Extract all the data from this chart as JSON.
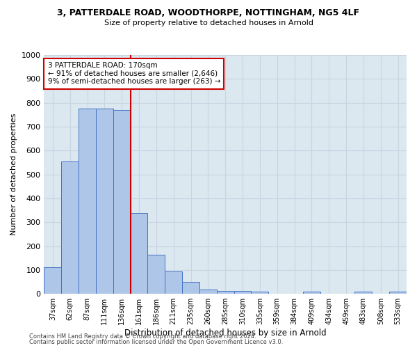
{
  "title1": "3, PATTERDALE ROAD, WOODTHORPE, NOTTINGHAM, NG5 4LF",
  "title2": "Size of property relative to detached houses in Arnold",
  "xlabel": "Distribution of detached houses by size in Arnold",
  "ylabel": "Number of detached properties",
  "footer1": "Contains HM Land Registry data © Crown copyright and database right 2024.",
  "footer2": "Contains public sector information licensed under the Open Government Licence v3.0.",
  "annotation_title": "3 PATTERDALE ROAD: 170sqm",
  "annotation_line1": "← 91% of detached houses are smaller (2,646)",
  "annotation_line2": "9% of semi-detached houses are larger (263) →",
  "property_size": 170,
  "vline_bin_index": 5,
  "bar_color": "#aec6e8",
  "bar_edge_color": "#4472c4",
  "vline_color": "#cc0000",
  "annotation_box_color": "#cc0000",
  "categories": [
    "37sqm",
    "62sqm",
    "87sqm",
    "111sqm",
    "136sqm",
    "161sqm",
    "186sqm",
    "211sqm",
    "235sqm",
    "260sqm",
    "285sqm",
    "310sqm",
    "335sqm",
    "359sqm",
    "384sqm",
    "409sqm",
    "434sqm",
    "459sqm",
    "483sqm",
    "508sqm",
    "533sqm"
  ],
  "values": [
    110,
    555,
    775,
    775,
    770,
    340,
    165,
    95,
    50,
    18,
    13,
    13,
    10,
    0,
    0,
    8,
    0,
    0,
    8,
    0,
    8
  ],
  "ylim": [
    0,
    1000
  ],
  "yticks": [
    0,
    100,
    200,
    300,
    400,
    500,
    600,
    700,
    800,
    900,
    1000
  ],
  "grid_color": "#c8d4e0",
  "bg_color": "#dce8f0"
}
